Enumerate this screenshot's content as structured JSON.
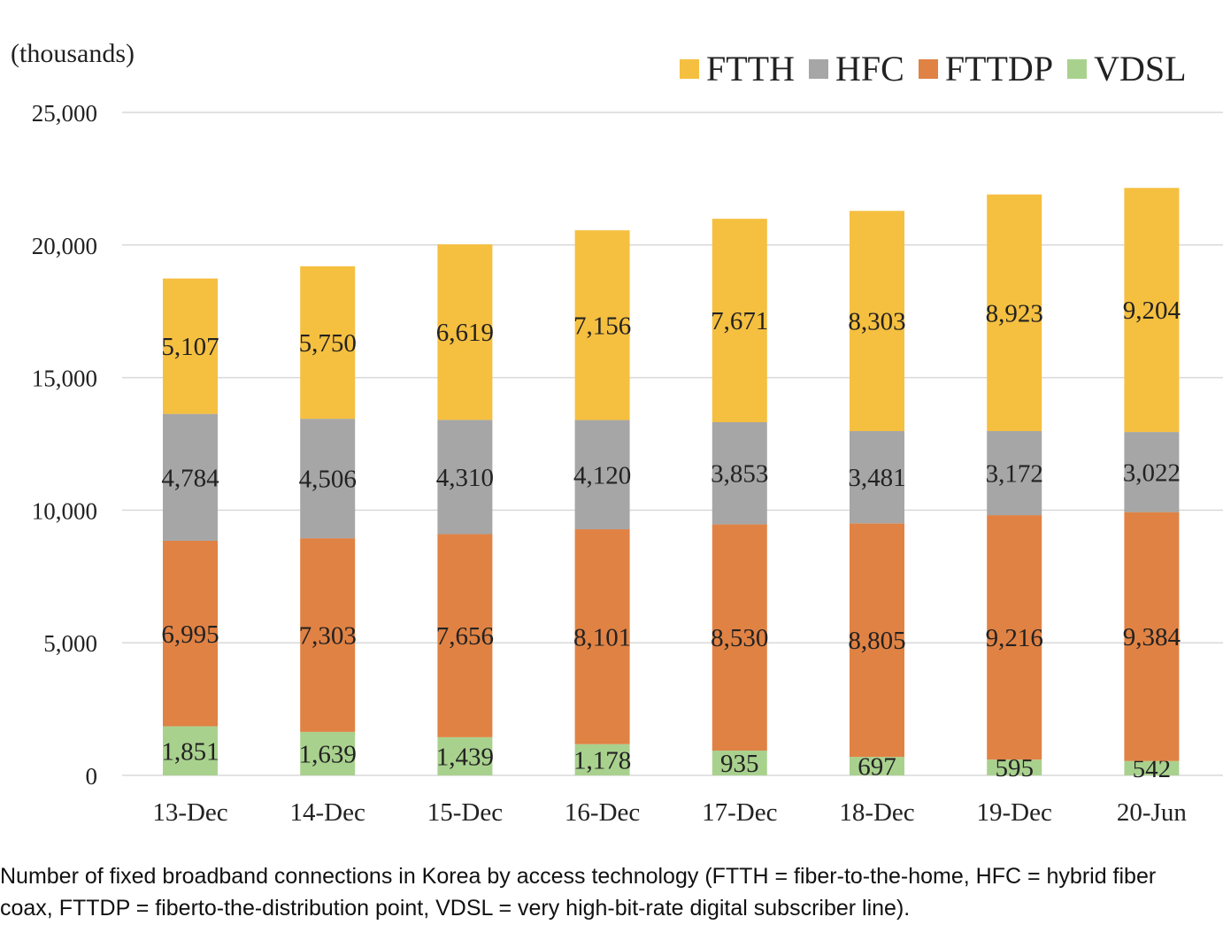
{
  "chart_data": {
    "type": "bar",
    "stacked": true,
    "unit_label": "(thousands)",
    "categories": [
      "13-Dec",
      "14-Dec",
      "15-Dec",
      "16-Dec",
      "17-Dec",
      "18-Dec",
      "19-Dec",
      "20-Jun"
    ],
    "series": [
      {
        "name": "VDSL",
        "color": "#a9d18e",
        "values": [
          1851,
          1639,
          1439,
          1178,
          935,
          697,
          595,
          542
        ],
        "labels": [
          "1,851",
          "1,639",
          "1,439",
          "1,178",
          "935",
          "697",
          "595",
          "542"
        ]
      },
      {
        "name": "FTTDP",
        "color": "#e08244",
        "values": [
          6995,
          7303,
          7656,
          8101,
          8530,
          8805,
          9216,
          9384
        ],
        "labels": [
          "6,995",
          "7,303",
          "7,656",
          "8,101",
          "8,530",
          "8,805",
          "9,216",
          "9,384"
        ]
      },
      {
        "name": "HFC",
        "color": "#a6a6a6",
        "values": [
          4784,
          4506,
          4310,
          4120,
          3853,
          3481,
          3172,
          3022
        ],
        "labels": [
          "4,784",
          "4,506",
          "4,310",
          "4,120",
          "3,853",
          "3,481",
          "3,172",
          "3,022"
        ]
      },
      {
        "name": "FTTH",
        "color": "#f5bf40",
        "values": [
          5107,
          5750,
          6619,
          7156,
          7671,
          8303,
          8923,
          9204
        ],
        "labels": [
          "5,107",
          "5,750",
          "6,619",
          "7,156",
          "7,671",
          "8,303",
          "8,923",
          "9,204"
        ]
      }
    ],
    "legend_order": [
      "FTTH",
      "HFC",
      "FTTDP",
      "VDSL"
    ],
    "ylim": [
      0,
      25000
    ],
    "yticks": [
      0,
      5000,
      10000,
      15000,
      20000,
      25000
    ],
    "ytick_labels": [
      "0",
      "5,000",
      "10,000",
      "15,000",
      "20,000",
      "25,000"
    ],
    "grid": true,
    "legend_position": "top-right"
  },
  "caption": "Number of fixed broadband connections in Korea by access technology (FTTH = fiber-to-the-home, HFC = hybrid fiber coax, FTTDP = fiberto-the-distribution point, VDSL = very high-bit-rate digital subscriber line)."
}
